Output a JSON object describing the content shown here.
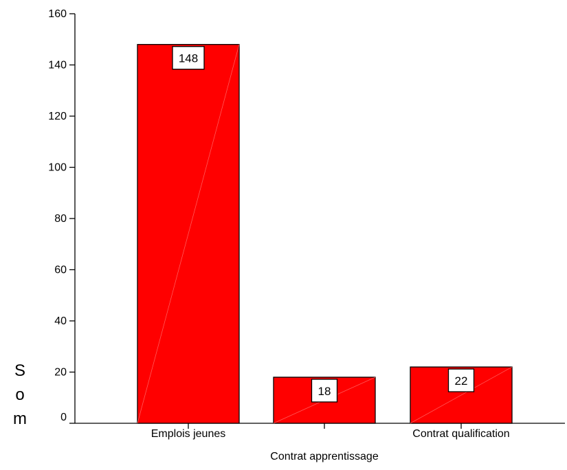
{
  "chart_data": {
    "type": "bar",
    "categories": [
      "Emplois  jeunes",
      "Contrat apprentissage",
      "Contrat qualification"
    ],
    "values": [
      148,
      18,
      22
    ],
    "data_labels": [
      "148",
      "18",
      "22"
    ],
    "title": "",
    "xlabel": "",
    "ylabel": "Som",
    "ylim": [
      0,
      160
    ],
    "yticks": [
      0,
      20,
      40,
      60,
      80,
      100,
      120,
      140,
      160
    ],
    "grid": false,
    "legend": "none",
    "colors": {
      "bar_fill": "#ff0000",
      "bar_stroke": "#000000",
      "diagonal": "#ff5a5a"
    }
  }
}
